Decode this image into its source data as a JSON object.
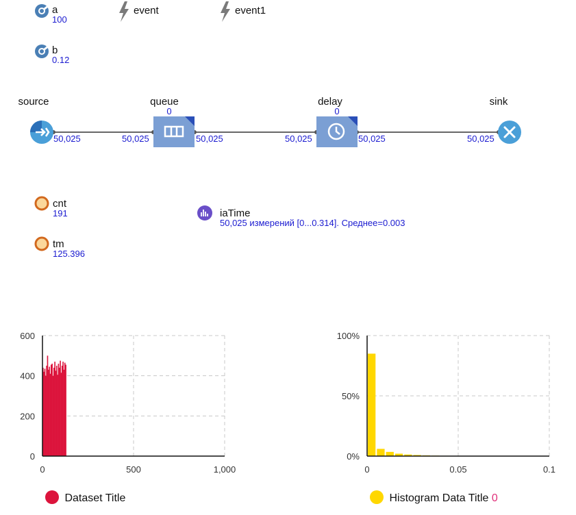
{
  "parameters": [
    {
      "name": "a",
      "value": "100",
      "icon": "parameter-icon"
    },
    {
      "name": "b",
      "value": "0.12",
      "icon": "parameter-icon"
    }
  ],
  "events": [
    {
      "name": "event",
      "icon": "lightning-icon"
    },
    {
      "name": "event1",
      "icon": "lightning-icon"
    }
  ],
  "flowchart": {
    "source": {
      "label": "source",
      "out_count": "50,025",
      "icon": "source-arrow-icon"
    },
    "queue": {
      "label": "queue",
      "value": "0",
      "in_count": "50,025",
      "out_count": "50,025",
      "icon": "queue-icon"
    },
    "delay": {
      "label": "delay",
      "value": "0",
      "in_count": "50,025",
      "out_count": "50,025",
      "icon": "clock-icon"
    },
    "sink": {
      "label": "sink",
      "in_count": "50,025",
      "icon": "close-x-icon"
    }
  },
  "variables": [
    {
      "name": "cnt",
      "value": "191"
    },
    {
      "name": "tm",
      "value": "125.396"
    }
  ],
  "dataset": {
    "name": "iaTime",
    "summary": "50,025 измерений [0...0.314]. Среднее=0.003",
    "icon": "statistics-icon"
  },
  "colors": {
    "block": "#7b9fd4",
    "source_sink": "#4a9fd8",
    "variable_ring": "#d2691e",
    "variable_fill": "#fbd79a",
    "value_text": "#1a1ad0",
    "series1": "#dc143c",
    "series2": "#ffd700",
    "legend_number": "#e0307a"
  },
  "chart_data": [
    {
      "type": "area",
      "xlim": [
        0,
        1000
      ],
      "ylim": [
        0,
        600
      ],
      "xticks": [
        "0",
        "500",
        "1,000"
      ],
      "yticks": [
        "600",
        "400",
        "200",
        "0"
      ],
      "grid": true,
      "legend": "bottom-left",
      "series": [
        {
          "name": "Dataset Title",
          "color": "#dc143c",
          "x": [
            0,
            5,
            10,
            15,
            20,
            25,
            30,
            35,
            40,
            45,
            50,
            55,
            60,
            65,
            70,
            75,
            80,
            85,
            90,
            95,
            100,
            105,
            110,
            115,
            120,
            125
          ],
          "y": [
            440,
            420,
            435,
            400,
            450,
            500,
            430,
            445,
            410,
            455,
            460,
            400,
            440,
            470,
            425,
            450,
            405,
            460,
            440,
            475,
            415,
            450,
            470,
            430,
            465,
            455
          ]
        }
      ]
    },
    {
      "type": "bar",
      "xlim": [
        0,
        0.1
      ],
      "ylim": [
        0,
        100
      ],
      "xticks": [
        "0",
        "0.05",
        "0.1"
      ],
      "yticks": [
        "100%",
        "50%",
        "0%"
      ],
      "grid": true,
      "legend": "bottom-left",
      "legend_count": "0",
      "series": [
        {
          "name": "Histogram Data Title",
          "color": "#ffd700",
          "bin_width": 0.005,
          "bin_starts": [
            0,
            0.005,
            0.01,
            0.015,
            0.02,
            0.025,
            0.03,
            0.035,
            0.04
          ],
          "values": [
            85,
            6,
            3.5,
            2,
            1.3,
            0.9,
            0.6,
            0.4,
            0.3
          ]
        }
      ]
    }
  ]
}
